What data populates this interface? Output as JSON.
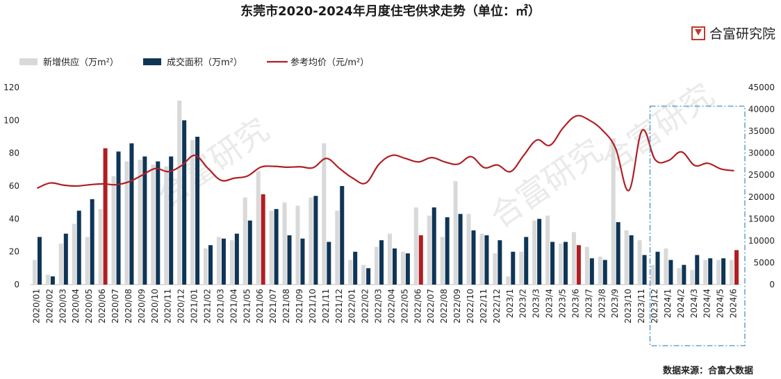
{
  "title": "东莞市2020-2024年月度住宅供求走势（单位：㎡）",
  "brand": {
    "name": "合富研究院",
    "icon": "hefu-logo-icon"
  },
  "source": "数据来源：合富大数据",
  "watermark": "合富研究",
  "colors": {
    "supply": "#d9d9d9",
    "deal": "#0f3556",
    "deal_highlight": "#b01e23",
    "price": "#b01e23",
    "box": "#4a90c8"
  },
  "chart_data": {
    "type": "bar",
    "legend": [
      "新增供应（万m²）",
      "成交面积（万m²）",
      "参考均价（元/m²）"
    ],
    "legend_position": "top-left",
    "categories": [
      "2020/01",
      "2020/02",
      "2020/03",
      "2020/04",
      "2020/05",
      "2020/06",
      "2020/07",
      "2020/08",
      "2020/09",
      "2020/10",
      "2020/11",
      "2020/12",
      "2021/01",
      "2021/02",
      "2021/03",
      "2021/04",
      "2021/05",
      "2021/06",
      "2021/07",
      "2021/08",
      "2021/09",
      "2021/10",
      "2021/11",
      "2021/12",
      "2022/01",
      "2022/02",
      "2022/03",
      "2022/04",
      "2022/05",
      "2022/06",
      "2022/07",
      "2022/08",
      "2022/09",
      "2022/10",
      "2022/11",
      "2022/12",
      "2023/1",
      "2023/2",
      "2023/3",
      "2023/4",
      "2023/5",
      "2023/6",
      "2023/7",
      "2023/8",
      "2023/9",
      "2023/10",
      "2023/11",
      "2023/12",
      "2024/1",
      "2024/2",
      "2024/3",
      "2024/4",
      "2024/5",
      "2024/6"
    ],
    "series": [
      {
        "name": "新增供应（万m²）",
        "type": "bar",
        "axis": "left",
        "values": [
          15,
          6,
          25,
          37,
          29,
          46,
          66,
          75,
          76,
          73,
          72,
          112,
          88,
          22,
          29,
          27,
          53,
          69,
          45,
          50,
          48,
          53,
          86,
          45,
          15,
          12,
          23,
          31,
          20,
          47,
          42,
          29,
          63,
          43,
          31,
          19,
          5,
          20,
          39,
          42,
          25,
          32,
          23,
          17,
          89,
          33,
          27,
          12,
          22,
          10,
          9,
          15,
          15,
          15
        ]
      },
      {
        "name": "成交面积（万m²）",
        "type": "bar",
        "axis": "left",
        "values": [
          29,
          5,
          31,
          45,
          52,
          83,
          81,
          86,
          78,
          75,
          78,
          100,
          90,
          24,
          28,
          31,
          39,
          55,
          46,
          30,
          28,
          54,
          26,
          60,
          20,
          10,
          27,
          22,
          19,
          30,
          47,
          41,
          43,
          33,
          30,
          27,
          20,
          29,
          40,
          26,
          26,
          24,
          16,
          15,
          38,
          30,
          18,
          20,
          15,
          12,
          18,
          16,
          16,
          21
        ]
      },
      {
        "name": "参考均价（元/m²）",
        "type": "line",
        "axis": "right",
        "values": [
          22000,
          23200,
          22700,
          22500,
          22800,
          23000,
          22800,
          23500,
          25000,
          26500,
          25800,
          27200,
          29500,
          26500,
          23800,
          24300,
          24800,
          26800,
          27000,
          26800,
          26900,
          26700,
          28800,
          26500,
          24300,
          23200,
          27500,
          29500,
          28800,
          28000,
          29000,
          28000,
          27500,
          29200,
          26700,
          27300,
          25800,
          29500,
          33000,
          31800,
          35800,
          38500,
          37500,
          35200,
          31000,
          21500,
          35200,
          28500,
          28300,
          30300,
          27200,
          27700,
          26400,
          26000
        ]
      }
    ],
    "highlighted_deal_months": [
      "2020/06",
      "2021/06",
      "2022/06",
      "2023/6",
      "2024/6"
    ],
    "y_left": {
      "ticks": [
        "0",
        "20",
        "40",
        "60",
        "80",
        "100",
        "120"
      ],
      "lim": [
        0,
        120
      ]
    },
    "y_right": {
      "ticks": [
        "0",
        "5000",
        "10000",
        "15000",
        "20000",
        "25000",
        "30000",
        "35000",
        "40000",
        "45000"
      ],
      "lim": [
        0,
        45000
      ]
    },
    "grid": false,
    "highlight_box_range": [
      "2023/12",
      "2024/6"
    ]
  }
}
